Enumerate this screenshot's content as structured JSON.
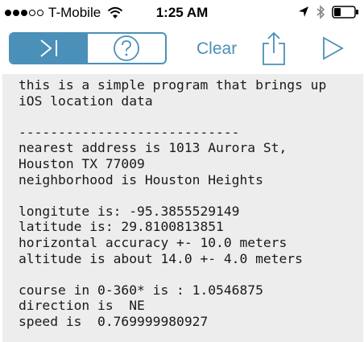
{
  "status_bar": {
    "carrier": "T-Mobile",
    "time": "1:25 AM",
    "signal_bars_filled": 3,
    "signal_bars_total": 5
  },
  "toolbar": {
    "clear_label": "Clear",
    "accent_color": "#4a90b8"
  },
  "console": {
    "lines": [
      "this is a simple program that brings up",
      "iOS location data",
      "",
      "----------------------------",
      "nearest address is 1013 Aurora St,",
      "Houston TX 77009",
      "neighborhood is Houston Heights",
      "",
      "longitute is: -95.3855529149",
      "latitude is: 29.8100813851",
      "horizontal accuracy +- 10.0 meters",
      "altitude is about 14.0 +- 4.0 meters",
      "",
      "course in 0-360* is : 1.0546875",
      "direction is  NE",
      "speed is  0.769999980927"
    ]
  }
}
